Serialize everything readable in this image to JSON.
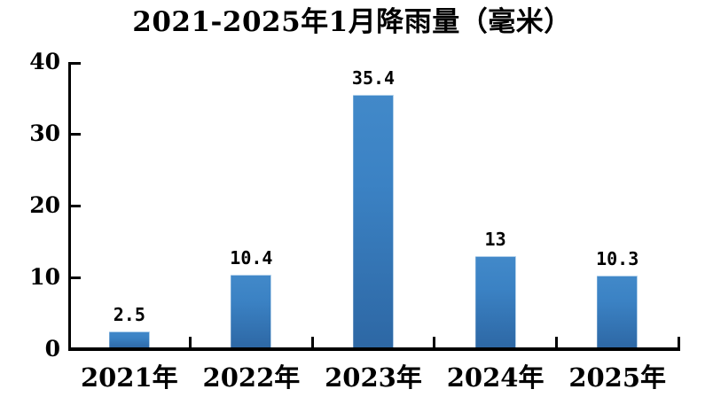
{
  "chart_data": {
    "type": "bar",
    "title": "2021-2025年1月降雨量（毫米）",
    "categories": [
      "2021年",
      "2022年",
      "2023年",
      "2024年",
      "2025年"
    ],
    "values": [
      2.5,
      10.4,
      35.4,
      13,
      10.3
    ],
    "value_labels": [
      "2.5",
      "10.4",
      "35.4",
      "13",
      "10.3"
    ],
    "xlabel": "",
    "ylabel": "",
    "ylim": [
      0,
      40
    ],
    "yticks": [
      0,
      10,
      20,
      30,
      40
    ],
    "grid": false,
    "legend": "none",
    "colors": {
      "bar_top": "#4289c9",
      "bar_bottom": "#2d67a4",
      "axis": "#000000",
      "text": "#000000",
      "background": "#ffffff"
    }
  }
}
